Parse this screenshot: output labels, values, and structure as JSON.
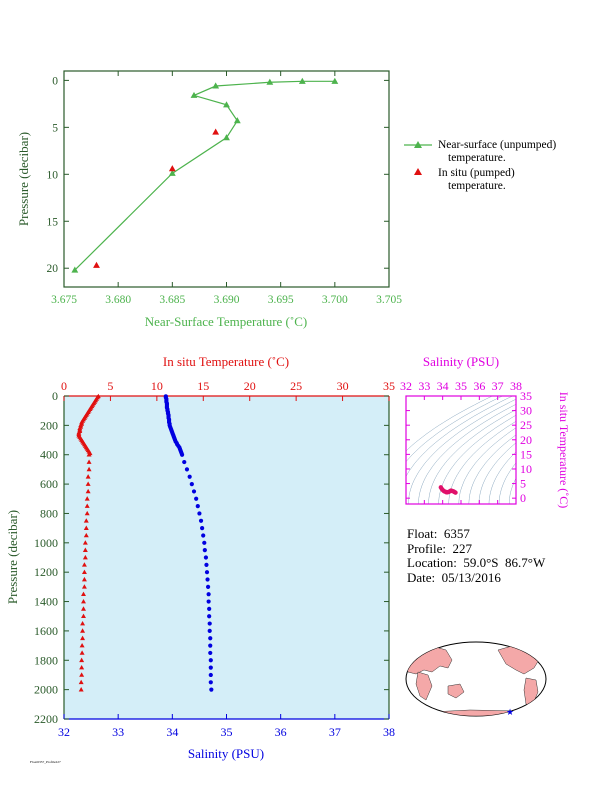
{
  "colors": {
    "green": "#4db34d",
    "red": "#e01010",
    "blue": "#0000e0",
    "magenta": "#e000e0",
    "plot_bg": "#d4eef8",
    "axis_dark": "#2a5a2a"
  },
  "info": {
    "float": "Float:  6357",
    "profile": "Profile:  227",
    "location": "Location:  59.0°S  86.7°W",
    "date": "Date:  05/13/2016"
  },
  "footer_text": "Float6357_Profile227",
  "chart_data": [
    {
      "type": "line",
      "xlabel": "Near-Surface Temperature (˚C)",
      "ylabel": "Pressure (decibar)",
      "xlim": [
        3.675,
        3.705
      ],
      "ylim": [
        22,
        -1
      ],
      "xticks": [
        3.675,
        3.68,
        3.685,
        3.69,
        3.695,
        3.7,
        3.705
      ],
      "xtick_labels": [
        "3.675",
        "3.680",
        "3.685",
        "3.690",
        "3.695",
        "3.700",
        "3.705"
      ],
      "yticks": [
        0,
        5,
        10,
        15,
        20
      ],
      "ytick_labels": [
        "0",
        "5",
        "10",
        "15",
        "20"
      ],
      "series": [
        {
          "name": "Near-surface (unpumped) temperature.",
          "marker": "triangle",
          "connected": true,
          "x": [
            3.7,
            3.697,
            3.694,
            3.689,
            3.687,
            3.69,
            3.691,
            3.69,
            3.685,
            3.676
          ],
          "y": [
            0.1,
            0.1,
            0.2,
            0.6,
            1.6,
            2.6,
            4.3,
            6.1,
            9.9,
            20.2
          ]
        },
        {
          "name": "In situ (pumped) temperature.",
          "marker": "triangle",
          "connected": false,
          "x": [
            3.689,
            3.685,
            3.678
          ],
          "y": [
            5.5,
            9.4,
            19.7
          ]
        }
      ],
      "legend": [
        {
          "line1": "Near-surface (unpumped)",
          "line2": "temperature."
        },
        {
          "line1": "In situ (pumped)",
          "line2": "temperature."
        }
      ],
      "legend_position": "right"
    },
    {
      "type": "scatter",
      "top_xlabel": "In situ Temperature (˚C)",
      "bottom_xlabel": "Salinity (PSU)",
      "ylabel": "Pressure (decibar)",
      "temp_lim": [
        0,
        35
      ],
      "sal_lim": [
        32,
        38
      ],
      "ylim": [
        2200,
        0
      ],
      "temp_ticks": [
        0,
        5,
        10,
        15,
        20,
        25,
        30,
        35
      ],
      "sal_ticks": [
        32,
        33,
        34,
        35,
        36,
        37,
        38
      ],
      "yticks": [
        0,
        200,
        400,
        600,
        800,
        1000,
        1200,
        1400,
        1600,
        1800,
        2000,
        2200
      ],
      "temperature": {
        "pressure": [
          2,
          10,
          20,
          30,
          40,
          50,
          60,
          70,
          80,
          90,
          100,
          110,
          120,
          130,
          140,
          150,
          160,
          170,
          180,
          190,
          200,
          210,
          220,
          230,
          240,
          250,
          260,
          270,
          280,
          290,
          300,
          310,
          320,
          330,
          340,
          350,
          360,
          370,
          380,
          390,
          400,
          450,
          500,
          550,
          600,
          650,
          700,
          750,
          800,
          850,
          900,
          950,
          1000,
          1050,
          1100,
          1150,
          1200,
          1250,
          1300,
          1350,
          1400,
          1450,
          1500,
          1550,
          1600,
          1650,
          1700,
          1750,
          1800,
          1850,
          1900,
          1950,
          2000
        ],
        "values": [
          3.7,
          3.6,
          3.5,
          3.4,
          3.3,
          3.2,
          3.1,
          3.0,
          2.9,
          2.8,
          2.7,
          2.6,
          2.5,
          2.4,
          2.3,
          2.2,
          2.1,
          2.0,
          1.9,
          1.9,
          1.8,
          1.8,
          1.7,
          1.7,
          1.7,
          1.6,
          1.6,
          1.6,
          1.7,
          1.8,
          1.9,
          2.0,
          2.1,
          2.2,
          2.3,
          2.4,
          2.5,
          2.6,
          2.7,
          2.8,
          2.7,
          2.7,
          2.7,
          2.6,
          2.6,
          2.6,
          2.5,
          2.5,
          2.5,
          2.4,
          2.4,
          2.4,
          2.3,
          2.3,
          2.3,
          2.2,
          2.2,
          2.2,
          2.2,
          2.1,
          2.1,
          2.1,
          2.1,
          2.0,
          2.0,
          2.0,
          1.95,
          1.95,
          1.9,
          1.9,
          1.9,
          1.85,
          1.85
        ]
      },
      "salinity": {
        "pressure": [
          2,
          10,
          20,
          30,
          40,
          50,
          60,
          70,
          80,
          90,
          100,
          110,
          120,
          130,
          140,
          150,
          160,
          170,
          180,
          190,
          200,
          210,
          220,
          230,
          240,
          250,
          260,
          270,
          280,
          290,
          300,
          310,
          320,
          330,
          340,
          350,
          360,
          370,
          380,
          390,
          400,
          450,
          500,
          550,
          600,
          650,
          700,
          750,
          800,
          850,
          900,
          950,
          1000,
          1050,
          1100,
          1150,
          1200,
          1250,
          1300,
          1350,
          1400,
          1450,
          1500,
          1550,
          1600,
          1650,
          1700,
          1750,
          1800,
          1850,
          1900,
          1950,
          2000
        ],
        "values": [
          33.88,
          33.88,
          33.89,
          33.89,
          33.89,
          33.9,
          33.9,
          33.9,
          33.9,
          33.91,
          33.91,
          33.92,
          33.92,
          33.93,
          33.93,
          33.93,
          33.94,
          33.94,
          33.94,
          33.95,
          33.95,
          33.96,
          33.97,
          33.98,
          33.99,
          34.0,
          34.01,
          34.02,
          34.03,
          34.04,
          34.05,
          34.06,
          34.08,
          34.09,
          34.11,
          34.13,
          34.14,
          34.15,
          34.16,
          34.17,
          34.18,
          34.22,
          34.27,
          34.32,
          34.36,
          34.4,
          34.44,
          34.47,
          34.5,
          34.53,
          34.55,
          34.57,
          34.59,
          34.6,
          34.62,
          34.63,
          34.64,
          34.65,
          34.66,
          34.67,
          34.67,
          34.68,
          34.68,
          34.69,
          34.69,
          34.7,
          34.7,
          34.7,
          34.71,
          34.71,
          34.71,
          34.71,
          34.72
        ]
      }
    },
    {
      "type": "scatter",
      "xlabel": "Salinity (PSU)",
      "ylabel": "In situ Temperature (˚C)",
      "xlim": [
        32,
        38
      ],
      "ylim": [
        -2,
        35
      ],
      "xticks": [
        32,
        33,
        34,
        35,
        36,
        37,
        38
      ],
      "yticks": [
        0,
        5,
        10,
        15,
        20,
        25,
        30,
        35
      ],
      "points_sal": [
        33.9,
        33.95,
        34.0,
        34.05,
        34.1,
        34.15,
        34.2,
        34.25,
        34.3,
        34.35,
        34.4,
        34.45,
        34.5,
        34.55,
        34.6,
        34.65,
        34.7
      ],
      "points_temp": [
        3.7,
        3.2,
        2.8,
        2.5,
        2.3,
        2.2,
        2.0,
        2.0,
        2.1,
        2.2,
        2.4,
        2.6,
        2.5,
        2.4,
        2.3,
        2.1,
        1.9
      ]
    }
  ],
  "map": {
    "marker_lon": -86.7,
    "marker_lat": -59.0
  }
}
